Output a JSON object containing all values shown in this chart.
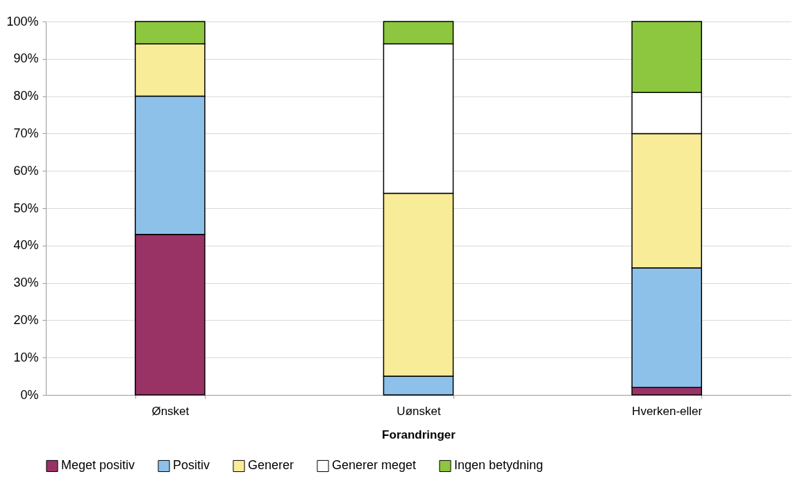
{
  "chart_data": {
    "type": "bar",
    "stacked": true,
    "xlabel": "Forandringer",
    "categories": [
      "Ønsket",
      "Uønsket",
      "Hverken-eller"
    ],
    "series": [
      {
        "name": "Meget positiv",
        "color": "#993366",
        "values": [
          43,
          0,
          2
        ]
      },
      {
        "name": "Positiv",
        "color": "#8ec1ea",
        "values": [
          37,
          5,
          32
        ]
      },
      {
        "name": "Generer",
        "color": "#f9ec98",
        "values": [
          14,
          49,
          36
        ]
      },
      {
        "name": "Generer meget",
        "color": "#ffffff",
        "values": [
          0,
          40,
          11
        ]
      },
      {
        "name": "Ingen betydning",
        "color": "#8dc63f",
        "values": [
          6,
          6,
          19
        ]
      }
    ],
    "ylim": [
      0,
      100
    ],
    "yticks": [
      {
        "value": 0,
        "label": "0%"
      },
      {
        "value": 10,
        "label": "10%"
      },
      {
        "value": 20,
        "label": "20%"
      },
      {
        "value": 30,
        "label": "30%"
      },
      {
        "value": 40,
        "label": "40%"
      },
      {
        "value": 50,
        "label": "50%"
      },
      {
        "value": 60,
        "label": "60%"
      },
      {
        "value": 70,
        "label": "70%"
      },
      {
        "value": 80,
        "label": "80%"
      },
      {
        "value": 90,
        "label": "90%"
      },
      {
        "value": 100,
        "label": "100%"
      }
    ],
    "grid": "y",
    "legend": "bottom"
  }
}
